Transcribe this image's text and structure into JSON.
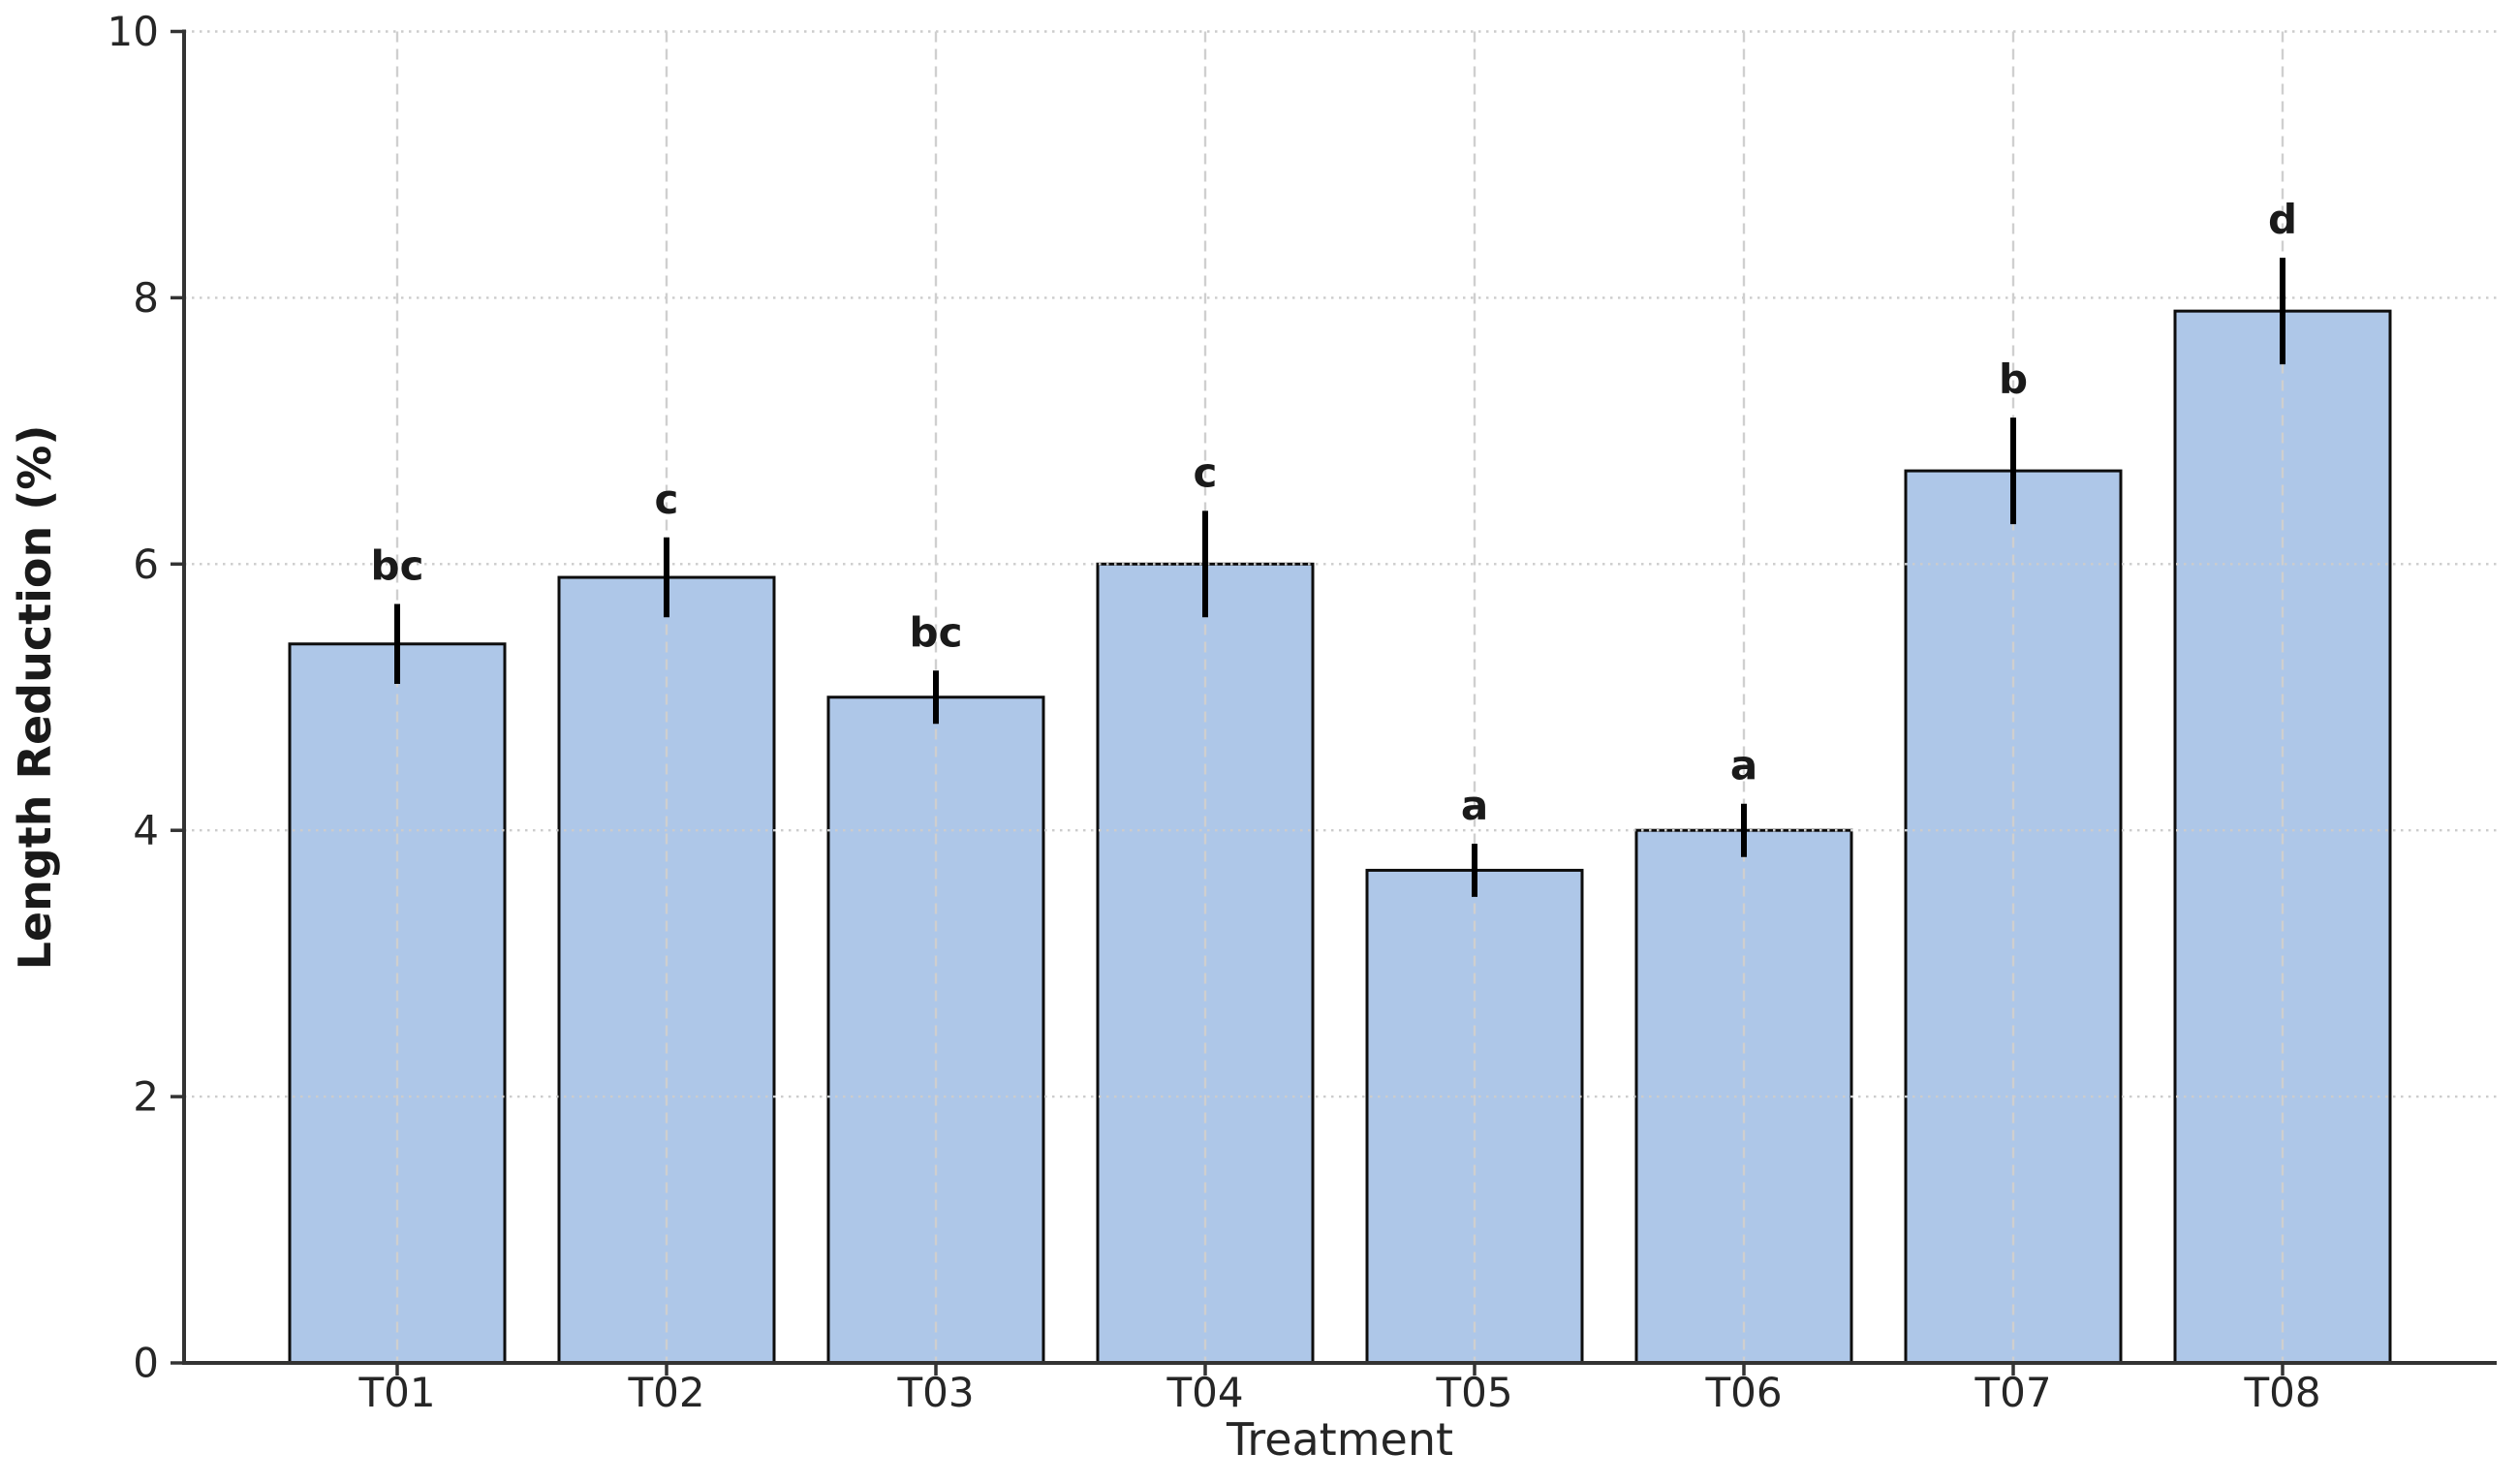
{
  "figure": {
    "background": "#ffffff"
  },
  "chart_data": {
    "type": "bar",
    "title": "",
    "xlabel": "Treatment",
    "ylabel": "Length Reduction (%)",
    "categories": [
      "T01",
      "T02",
      "T03",
      "T04",
      "T05",
      "T06",
      "T07",
      "T08"
    ],
    "series": [
      {
        "name": "Length Reduction (%)",
        "values": [
          5.4,
          5.9,
          5.0,
          6.0,
          3.7,
          4.0,
          6.7,
          7.9
        ],
        "errors": [
          0.3,
          0.3,
          0.2,
          0.4,
          0.2,
          0.2,
          0.4,
          0.4
        ],
        "significance_letters": [
          "bc",
          "c",
          "bc",
          "c",
          "a",
          "a",
          "b",
          "d"
        ]
      }
    ],
    "ylim": [
      0,
      10
    ],
    "yticks": [
      0,
      2,
      4,
      6,
      8,
      10
    ],
    "legend": "none",
    "grid": {
      "horizontal_style": "dotted",
      "vertical_style": "dashed",
      "grid_above_bars": true
    },
    "colors": {
      "bar_fill": "#aec7e8",
      "bar_edge": "#0d0d0d",
      "error_bar": "#000000",
      "grid_horizontal": "#cccccc",
      "grid_vertical": "#cfcfcf",
      "axis_line": "#333333",
      "tick_text": "#262626"
    }
  }
}
